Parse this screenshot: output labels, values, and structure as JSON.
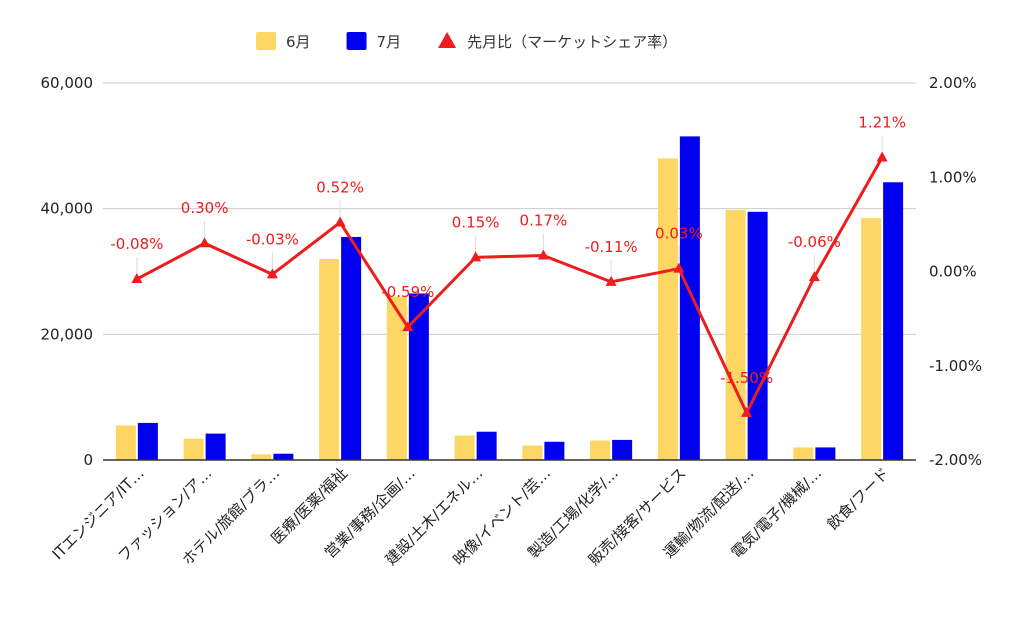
{
  "chart_data": {
    "type": "bar",
    "categories": [
      "ITエンジニア/IT…",
      "ファッション/ア…",
      "ホテル/旅館/ブラ…",
      "医療/医薬/福祉",
      "営業/事務/企画/…",
      "建設/土木/エネル…",
      "映像/イベント/芸…",
      "製造/工場/化学/…",
      "販売/接客/サービス",
      "運輸/物流/配送/…",
      "電気/電子/機械/…",
      "飲食/フード"
    ],
    "series": [
      {
        "name": "6月",
        "color": "#fdd663",
        "axis": "left",
        "values": [
          5500,
          3400,
          900,
          32000,
          26000,
          3900,
          2300,
          3100,
          48000,
          39800,
          2000,
          38500
        ]
      },
      {
        "name": "7月",
        "color": "#0000ee",
        "axis": "left",
        "values": [
          5900,
          4200,
          1000,
          35500,
          26500,
          4500,
          2900,
          3200,
          51500,
          39500,
          2000,
          44200
        ]
      },
      {
        "name": "先月比（マーケットシェア率）",
        "color": "#ee1c1c",
        "type": "line",
        "axis": "right",
        "values": [
          -0.08,
          0.3,
          -0.03,
          0.52,
          -0.59,
          0.15,
          0.17,
          -0.11,
          0.03,
          -1.5,
          -0.06,
          1.21
        ],
        "labels": [
          "-0.08%",
          "0.30%",
          "-0.03%",
          "0.52%",
          "-0.59%",
          "0.15%",
          "0.17%",
          "-0.11%",
          "0.03%",
          "-1.50%",
          "-0.06%",
          "1.21%"
        ]
      }
    ],
    "y_left": {
      "ylim": [
        0,
        60000
      ],
      "ticks": [
        0,
        20000,
        40000,
        60000
      ],
      "tick_labels": [
        "0",
        "20,000",
        "40,000",
        "60,000"
      ]
    },
    "y_right": {
      "ylim": [
        -2,
        2
      ],
      "ticks": [
        -2,
        -1,
        0,
        1,
        2
      ],
      "tick_labels": [
        "-2.00%",
        "-1.00%",
        "0.00%",
        "1.00%",
        "2.00%"
      ]
    },
    "legend_position": "top",
    "grid": true
  }
}
